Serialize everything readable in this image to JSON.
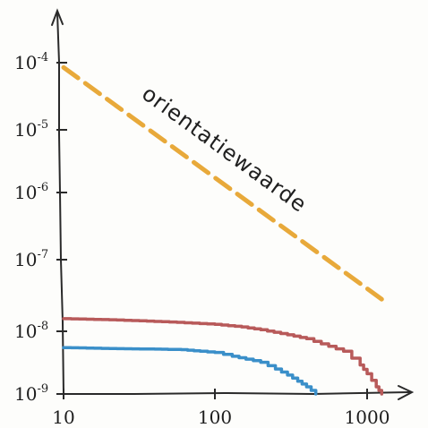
{
  "chart_data": {
    "type": "line",
    "x_scale": "log",
    "y_scale": "log",
    "xlim": [
      10,
      1500
    ],
    "ylim": [
      1e-09,
      0.0001
    ],
    "x_ticks": [
      {
        "value": 10,
        "label": "10"
      },
      {
        "value": 100,
        "label": "100"
      },
      {
        "value": 1000,
        "label": "1000"
      }
    ],
    "y_ticks": [
      {
        "value": 1e-09,
        "base": "10",
        "exp": "-9"
      },
      {
        "value": 1e-08,
        "base": "10",
        "exp": "-8"
      },
      {
        "value": 1e-07,
        "base": "10",
        "exp": "-7"
      },
      {
        "value": 1e-06,
        "base": "10",
        "exp": "-6"
      },
      {
        "value": 1e-05,
        "base": "10",
        "exp": "-5"
      },
      {
        "value": 0.0001,
        "base": "10",
        "exp": "-4"
      }
    ],
    "grid": false,
    "annotation": {
      "text": "orientatiewaarde",
      "anchor_x": 100,
      "anchor_y": 2.2e-06
    },
    "series": [
      {
        "style": "dashed",
        "color": "#e8a93a",
        "points": [
          {
            "x": 10,
            "y": 8.5e-05
          },
          {
            "x": 1250,
            "y": 2.8e-08
          }
        ]
      },
      {
        "style": "solid",
        "color": "#b85a5a",
        "points": [
          {
            "x": 10,
            "y": 1.5e-08
          },
          {
            "x": 20,
            "y": 1.45e-08
          },
          {
            "x": 50,
            "y": 1.35e-08
          },
          {
            "x": 100,
            "y": 1.25e-08
          },
          {
            "x": 150,
            "y": 1.15e-08
          },
          {
            "x": 200,
            "y": 1.05e-08
          },
          {
            "x": 300,
            "y": 8.8e-09
          },
          {
            "x": 400,
            "y": 7.6e-09
          },
          {
            "x": 500,
            "y": 6.3e-09
          },
          {
            "x": 700,
            "y": 4.8e-09
          },
          {
            "x": 900,
            "y": 2.9e-09
          },
          {
            "x": 1000,
            "y": 2.1e-09
          },
          {
            "x": 1150,
            "y": 1.3e-09
          },
          {
            "x": 1250,
            "y": 1e-09
          }
        ]
      },
      {
        "style": "solid",
        "color": "#3a8fc9",
        "points": [
          {
            "x": 10,
            "y": 5.5e-09
          },
          {
            "x": 20,
            "y": 5.3e-09
          },
          {
            "x": 40,
            "y": 5.2e-09
          },
          {
            "x": 60,
            "y": 5.1e-09
          },
          {
            "x": 80,
            "y": 4.8e-09
          },
          {
            "x": 100,
            "y": 4.6e-09
          },
          {
            "x": 130,
            "y": 4e-09
          },
          {
            "x": 160,
            "y": 3.6e-09
          },
          {
            "x": 200,
            "y": 3.2e-09
          },
          {
            "x": 250,
            "y": 2.5e-09
          },
          {
            "x": 300,
            "y": 2e-09
          },
          {
            "x": 350,
            "y": 1.6e-09
          },
          {
            "x": 400,
            "y": 1.3e-09
          },
          {
            "x": 460,
            "y": 1e-09
          }
        ]
      }
    ]
  }
}
